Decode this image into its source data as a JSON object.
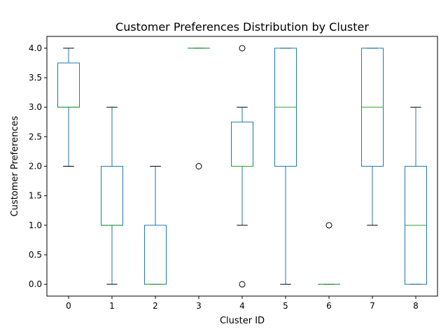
{
  "chart_data": {
    "type": "box",
    "title": "Customer Preferences Distribution by Cluster",
    "xlabel": "Cluster ID",
    "ylabel": "Customer Preferences",
    "ylim": [
      -0.2,
      4.2
    ],
    "yticks": [
      0.0,
      0.5,
      1.0,
      1.5,
      2.0,
      2.5,
      3.0,
      3.5,
      4.0
    ],
    "ytick_labels": [
      "0.0",
      "0.5",
      "1.0",
      "1.5",
      "2.0",
      "2.5",
      "3.0",
      "3.5",
      "4.0"
    ],
    "categories": [
      "0",
      "1",
      "2",
      "3",
      "4",
      "5",
      "6",
      "7",
      "8"
    ],
    "grid": false,
    "colors": {
      "box": "#1f77b4",
      "median": "#2ca02c",
      "whisker": "#1f77b4",
      "cap": "#000000",
      "outlier": "#000000"
    },
    "boxes": [
      {
        "category": "0",
        "whislo": 2,
        "q1": 3,
        "med": 3,
        "q3": 3.75,
        "whishi": 4,
        "fliers": []
      },
      {
        "category": "1",
        "whislo": 0,
        "q1": 1,
        "med": 1,
        "q3": 2,
        "whishi": 3,
        "fliers": []
      },
      {
        "category": "2",
        "whislo": 0,
        "q1": 0,
        "med": 0,
        "q3": 1,
        "whishi": 2,
        "fliers": []
      },
      {
        "category": "3",
        "whislo": 4,
        "q1": 4,
        "med": 4,
        "q3": 4,
        "whishi": 4,
        "fliers": [
          2
        ]
      },
      {
        "category": "4",
        "whislo": 1,
        "q1": 2,
        "med": 2,
        "q3": 2.75,
        "whishi": 3,
        "fliers": [
          0,
          4
        ]
      },
      {
        "category": "5",
        "whislo": 0,
        "q1": 2,
        "med": 3,
        "q3": 4,
        "whishi": 4,
        "fliers": []
      },
      {
        "category": "6",
        "whislo": 0,
        "q1": 0,
        "med": 0,
        "q3": 0,
        "whishi": 0,
        "fliers": [
          1
        ]
      },
      {
        "category": "7",
        "whislo": 1,
        "q1": 2,
        "med": 3,
        "q3": 4,
        "whishi": 4,
        "fliers": []
      },
      {
        "category": "8",
        "whislo": 0,
        "q1": 0,
        "med": 1,
        "q3": 2,
        "whishi": 3,
        "fliers": []
      }
    ]
  }
}
